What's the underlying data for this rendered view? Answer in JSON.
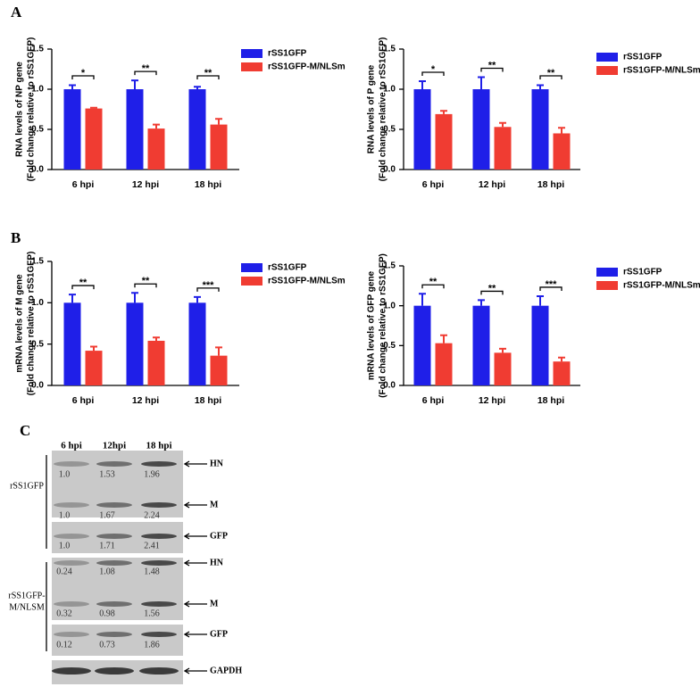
{
  "panel_labels": [
    "A",
    "B",
    "C"
  ],
  "chart_data": [
    {
      "type": "bar",
      "ylabel": [
        "RNA levels of NP gene",
        "(Fold change relative to rSS1GFP)"
      ],
      "categories": [
        "6 hpi",
        "12 hpi",
        "18 hpi"
      ],
      "series": [
        {
          "name": "rSS1GFP",
          "color": "#1f1fe8",
          "values": [
            1.0,
            1.0,
            1.0
          ],
          "errors": [
            0.05,
            0.11,
            0.03
          ]
        },
        {
          "name": "rSS1GFP-M/NLSm",
          "color": "#f03c32",
          "values": [
            0.76,
            0.51,
            0.56
          ],
          "errors": [
            0.01,
            0.05,
            0.07
          ]
        }
      ],
      "significance": [
        "*",
        "**",
        "**"
      ],
      "ylim": [
        0,
        1.5
      ],
      "yticks": [
        {
          "value": 0,
          "label": "0.0"
        },
        0.5,
        {
          "value": 1,
          "label": "1.0"
        },
        1.5
      ],
      "grid": false
    },
    {
      "type": "bar",
      "ylabel": [
        "RNA levels of P gene",
        "(Fold change relative to rSS1GFP)"
      ],
      "categories": [
        "6 hpi",
        "12 hpi",
        "18 hpi"
      ],
      "series": [
        {
          "name": "rSS1GFP",
          "color": "#1f1fe8",
          "values": [
            1.0,
            1.0,
            1.0
          ],
          "errors": [
            0.1,
            0.15,
            0.05
          ]
        },
        {
          "name": "rSS1GFP-M/NLSm",
          "color": "#f03c32",
          "values": [
            0.69,
            0.53,
            0.45
          ],
          "errors": [
            0.04,
            0.05,
            0.07
          ]
        }
      ],
      "significance": [
        "*",
        "**",
        "**"
      ],
      "ylim": [
        0,
        1.5
      ],
      "yticks": [
        {
          "value": 0,
          "label": "0.0"
        },
        0.5,
        {
          "value": 1,
          "label": "1.0"
        },
        1.5
      ],
      "grid": false
    },
    {
      "type": "bar",
      "ylabel": [
        "mRNA levels of M gene",
        "(Fold change relative to rSS1GFP)"
      ],
      "categories": [
        "6 hpi",
        "12 hpi",
        "18 hpi"
      ],
      "series": [
        {
          "name": "rSS1GFP",
          "color": "#1f1fe8",
          "values": [
            1.0,
            1.0,
            1.0
          ],
          "errors": [
            0.1,
            0.12,
            0.07
          ]
        },
        {
          "name": "rSS1GFP-M/NLSm",
          "color": "#f03c32",
          "values": [
            0.42,
            0.54,
            0.36
          ],
          "errors": [
            0.05,
            0.04,
            0.1
          ]
        }
      ],
      "significance": [
        "**",
        "**",
        "***"
      ],
      "ylim": [
        0,
        1.5
      ],
      "yticks": [
        {
          "value": 0,
          "label": "0.0"
        },
        0.5,
        {
          "value": 1,
          "label": "1.0"
        },
        1.5
      ],
      "grid": false
    },
    {
      "type": "bar",
      "ylabel": [
        "mRNA levels of GFP gene",
        "(Fold change relative to rSS1GFP)"
      ],
      "categories": [
        "6 hpi",
        "12 hpi",
        "18 hpi"
      ],
      "series": [
        {
          "name": "rSS1GFP",
          "color": "#1f1fe8",
          "values": [
            1.0,
            1.0,
            1.0
          ],
          "errors": [
            0.15,
            0.07,
            0.12
          ]
        },
        {
          "name": "rSS1GFP-M/NLSm",
          "color": "#f03c32",
          "values": [
            0.53,
            0.41,
            0.3
          ],
          "errors": [
            0.1,
            0.05,
            0.05
          ]
        }
      ],
      "significance": [
        "**",
        "**",
        "***"
      ],
      "ylim": [
        0,
        1.5
      ],
      "yticks": [
        {
          "value": 0,
          "label": "0.0"
        },
        0.5,
        {
          "value": 1,
          "label": "1.0"
        },
        1.5
      ],
      "grid": false
    }
  ],
  "blot": {
    "columns": [
      "6 hpi",
      "12hpi",
      "18 hpi"
    ],
    "groups": [
      {
        "name": [
          "rSS1GFP"
        ],
        "rows": [
          {
            "label": "HN",
            "values": [
              "1.0",
              "1.53",
              "1.96"
            ]
          },
          {
            "label": "M",
            "values": [
              "1.0",
              "1.67",
              "2.24"
            ]
          },
          {
            "label": "GFP",
            "values": [
              "1.0",
              "1.71",
              "2.41"
            ]
          }
        ]
      },
      {
        "name": [
          "rSS1GFP-",
          "M/NLSM"
        ],
        "rows": [
          {
            "label": "HN",
            "values": [
              "0.24",
              "1.08",
              "1.48"
            ]
          },
          {
            "label": "M",
            "values": [
              "0.32",
              "0.98",
              "1.56"
            ]
          },
          {
            "label": "GFP",
            "values": [
              "0.12",
              "0.73",
              "1.86"
            ]
          }
        ]
      }
    ],
    "loading": "GAPDH"
  }
}
